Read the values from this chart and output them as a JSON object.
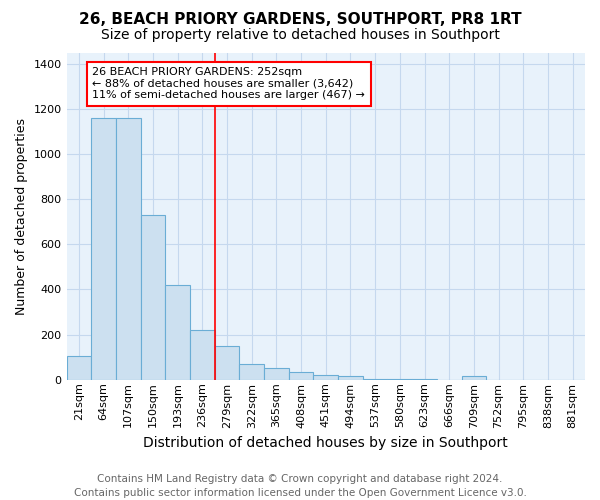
{
  "title": "26, BEACH PRIORY GARDENS, SOUTHPORT, PR8 1RT",
  "subtitle": "Size of property relative to detached houses in Southport",
  "xlabel": "Distribution of detached houses by size in Southport",
  "ylabel": "Number of detached properties",
  "footnote": "Contains HM Land Registry data © Crown copyright and database right 2024.\nContains public sector information licensed under the Open Government Licence v3.0.",
  "categories": [
    "21sqm",
    "64sqm",
    "107sqm",
    "150sqm",
    "193sqm",
    "236sqm",
    "279sqm",
    "322sqm",
    "365sqm",
    "408sqm",
    "451sqm",
    "494sqm",
    "537sqm",
    "580sqm",
    "623sqm",
    "666sqm",
    "709sqm",
    "752sqm",
    "795sqm",
    "838sqm",
    "881sqm"
  ],
  "values": [
    105,
    1160,
    1160,
    730,
    420,
    220,
    150,
    70,
    50,
    35,
    20,
    15,
    5,
    5,
    5,
    0,
    15,
    0,
    0,
    0,
    0
  ],
  "bar_color": "#cce0f0",
  "bar_edge_color": "#6aadd5",
  "grid_color": "#c5d8ee",
  "background_color": "#e8f2fb",
  "annotation_text": "26 BEACH PRIORY GARDENS: 252sqm\n← 88% of detached houses are smaller (3,642)\n11% of semi-detached houses are larger (467) →",
  "ylim": [
    0,
    1450
  ],
  "yticks": [
    0,
    200,
    400,
    600,
    800,
    1000,
    1200,
    1400
  ],
  "red_line_index": 6,
  "title_fontsize": 11,
  "subtitle_fontsize": 10,
  "xlabel_fontsize": 10,
  "ylabel_fontsize": 9,
  "tick_fontsize": 8,
  "annotation_fontsize": 8,
  "footnote_fontsize": 7.5
}
